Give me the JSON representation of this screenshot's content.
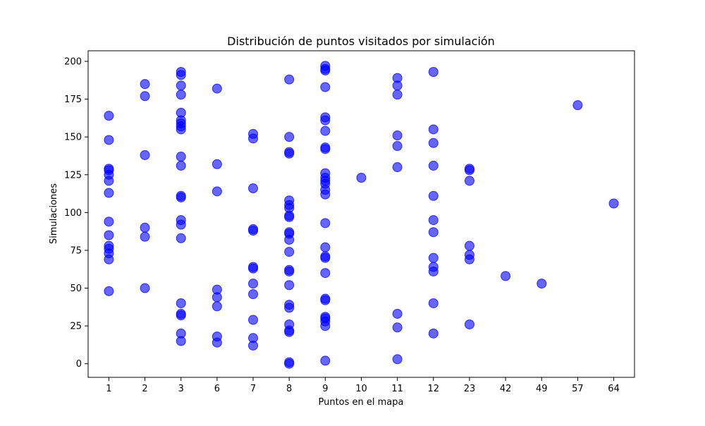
{
  "chart_data": {
    "type": "scatter",
    "title": "Distribución de puntos visitados por simulación",
    "xlabel": "Puntos en el mapa",
    "ylabel": "Simulaciones",
    "x_categories": [
      "1",
      "2",
      "3",
      "6",
      "7",
      "8",
      "9",
      "10",
      "11",
      "12",
      "23",
      "42",
      "49",
      "57",
      "64"
    ],
    "y_ticks": [
      0,
      25,
      50,
      75,
      100,
      125,
      150,
      175,
      200
    ],
    "ylim": [
      -9,
      207
    ],
    "grid": false,
    "legend": false,
    "marker_color": "#0000ff",
    "marker_alpha": 0.6,
    "points": [
      {
        "x": "1",
        "y": 48
      },
      {
        "x": "1",
        "y": 69
      },
      {
        "x": "1",
        "y": 73
      },
      {
        "x": "1",
        "y": 76
      },
      {
        "x": "1",
        "y": 78
      },
      {
        "x": "1",
        "y": 85
      },
      {
        "x": "1",
        "y": 94
      },
      {
        "x": "1",
        "y": 113
      },
      {
        "x": "1",
        "y": 121
      },
      {
        "x": "1",
        "y": 125
      },
      {
        "x": "1",
        "y": 128
      },
      {
        "x": "1",
        "y": 129
      },
      {
        "x": "1",
        "y": 148
      },
      {
        "x": "1",
        "y": 164
      },
      {
        "x": "2",
        "y": 50
      },
      {
        "x": "2",
        "y": 84
      },
      {
        "x": "2",
        "y": 90
      },
      {
        "x": "2",
        "y": 138
      },
      {
        "x": "2",
        "y": 177
      },
      {
        "x": "2",
        "y": 185
      },
      {
        "x": "3",
        "y": 15
      },
      {
        "x": "3",
        "y": 20
      },
      {
        "x": "3",
        "y": 32
      },
      {
        "x": "3",
        "y": 33
      },
      {
        "x": "3",
        "y": 40
      },
      {
        "x": "3",
        "y": 83
      },
      {
        "x": "3",
        "y": 92
      },
      {
        "x": "3",
        "y": 95
      },
      {
        "x": "3",
        "y": 110
      },
      {
        "x": "3",
        "y": 111
      },
      {
        "x": "3",
        "y": 131
      },
      {
        "x": "3",
        "y": 137
      },
      {
        "x": "3",
        "y": 155
      },
      {
        "x": "3",
        "y": 157
      },
      {
        "x": "3",
        "y": 159
      },
      {
        "x": "3",
        "y": 161
      },
      {
        "x": "3",
        "y": 166
      },
      {
        "x": "3",
        "y": 178
      },
      {
        "x": "3",
        "y": 184
      },
      {
        "x": "3",
        "y": 191
      },
      {
        "x": "3",
        "y": 193
      },
      {
        "x": "6",
        "y": 14
      },
      {
        "x": "6",
        "y": 18
      },
      {
        "x": "6",
        "y": 38
      },
      {
        "x": "6",
        "y": 44
      },
      {
        "x": "6",
        "y": 49
      },
      {
        "x": "6",
        "y": 114
      },
      {
        "x": "6",
        "y": 132
      },
      {
        "x": "6",
        "y": 182
      },
      {
        "x": "7",
        "y": 12
      },
      {
        "x": "7",
        "y": 17
      },
      {
        "x": "7",
        "y": 29
      },
      {
        "x": "7",
        "y": 46
      },
      {
        "x": "7",
        "y": 53
      },
      {
        "x": "7",
        "y": 63
      },
      {
        "x": "7",
        "y": 64
      },
      {
        "x": "7",
        "y": 88
      },
      {
        "x": "7",
        "y": 89
      },
      {
        "x": "7",
        "y": 116
      },
      {
        "x": "7",
        "y": 149
      },
      {
        "x": "7",
        "y": 152
      },
      {
        "x": "8",
        "y": 0
      },
      {
        "x": "8",
        "y": 1
      },
      {
        "x": "8",
        "y": 21
      },
      {
        "x": "8",
        "y": 22
      },
      {
        "x": "8",
        "y": 26
      },
      {
        "x": "8",
        "y": 37
      },
      {
        "x": "8",
        "y": 39
      },
      {
        "x": "8",
        "y": 52
      },
      {
        "x": "8",
        "y": 61
      },
      {
        "x": "8",
        "y": 62
      },
      {
        "x": "8",
        "y": 74
      },
      {
        "x": "8",
        "y": 82
      },
      {
        "x": "8",
        "y": 86
      },
      {
        "x": "8",
        "y": 87
      },
      {
        "x": "8",
        "y": 97
      },
      {
        "x": "8",
        "y": 98
      },
      {
        "x": "8",
        "y": 103
      },
      {
        "x": "8",
        "y": 105
      },
      {
        "x": "8",
        "y": 108
      },
      {
        "x": "8",
        "y": 139
      },
      {
        "x": "8",
        "y": 140
      },
      {
        "x": "8",
        "y": 150
      },
      {
        "x": "8",
        "y": 188
      },
      {
        "x": "9",
        "y": 2
      },
      {
        "x": "9",
        "y": 25
      },
      {
        "x": "9",
        "y": 28
      },
      {
        "x": "9",
        "y": 30
      },
      {
        "x": "9",
        "y": 31
      },
      {
        "x": "9",
        "y": 42
      },
      {
        "x": "9",
        "y": 43
      },
      {
        "x": "9",
        "y": 60
      },
      {
        "x": "9",
        "y": 70
      },
      {
        "x": "9",
        "y": 71
      },
      {
        "x": "9",
        "y": 77
      },
      {
        "x": "9",
        "y": 93
      },
      {
        "x": "9",
        "y": 112
      },
      {
        "x": "9",
        "y": 115
      },
      {
        "x": "9",
        "y": 119
      },
      {
        "x": "9",
        "y": 121
      },
      {
        "x": "9",
        "y": 123
      },
      {
        "x": "9",
        "y": 126
      },
      {
        "x": "9",
        "y": 142
      },
      {
        "x": "9",
        "y": 143
      },
      {
        "x": "9",
        "y": 154
      },
      {
        "x": "9",
        "y": 161
      },
      {
        "x": "9",
        "y": 163
      },
      {
        "x": "9",
        "y": 183
      },
      {
        "x": "9",
        "y": 194
      },
      {
        "x": "9",
        "y": 195
      },
      {
        "x": "9",
        "y": 197
      },
      {
        "x": "10",
        "y": 123
      },
      {
        "x": "11",
        "y": 3
      },
      {
        "x": "11",
        "y": 24
      },
      {
        "x": "11",
        "y": 33
      },
      {
        "x": "11",
        "y": 130
      },
      {
        "x": "11",
        "y": 144
      },
      {
        "x": "11",
        "y": 151
      },
      {
        "x": "11",
        "y": 178
      },
      {
        "x": "11",
        "y": 184
      },
      {
        "x": "11",
        "y": 189
      },
      {
        "x": "12",
        "y": 20
      },
      {
        "x": "12",
        "y": 40
      },
      {
        "x": "12",
        "y": 61
      },
      {
        "x": "12",
        "y": 64
      },
      {
        "x": "12",
        "y": 70
      },
      {
        "x": "12",
        "y": 87
      },
      {
        "x": "12",
        "y": 95
      },
      {
        "x": "12",
        "y": 111
      },
      {
        "x": "12",
        "y": 131
      },
      {
        "x": "12",
        "y": 146
      },
      {
        "x": "12",
        "y": 155
      },
      {
        "x": "12",
        "y": 193
      },
      {
        "x": "23",
        "y": 26
      },
      {
        "x": "23",
        "y": 69
      },
      {
        "x": "23",
        "y": 72
      },
      {
        "x": "23",
        "y": 78
      },
      {
        "x": "23",
        "y": 121
      },
      {
        "x": "23",
        "y": 128
      },
      {
        "x": "23",
        "y": 129
      },
      {
        "x": "42",
        "y": 58
      },
      {
        "x": "49",
        "y": 53
      },
      {
        "x": "57",
        "y": 171
      },
      {
        "x": "64",
        "y": 106
      }
    ]
  }
}
